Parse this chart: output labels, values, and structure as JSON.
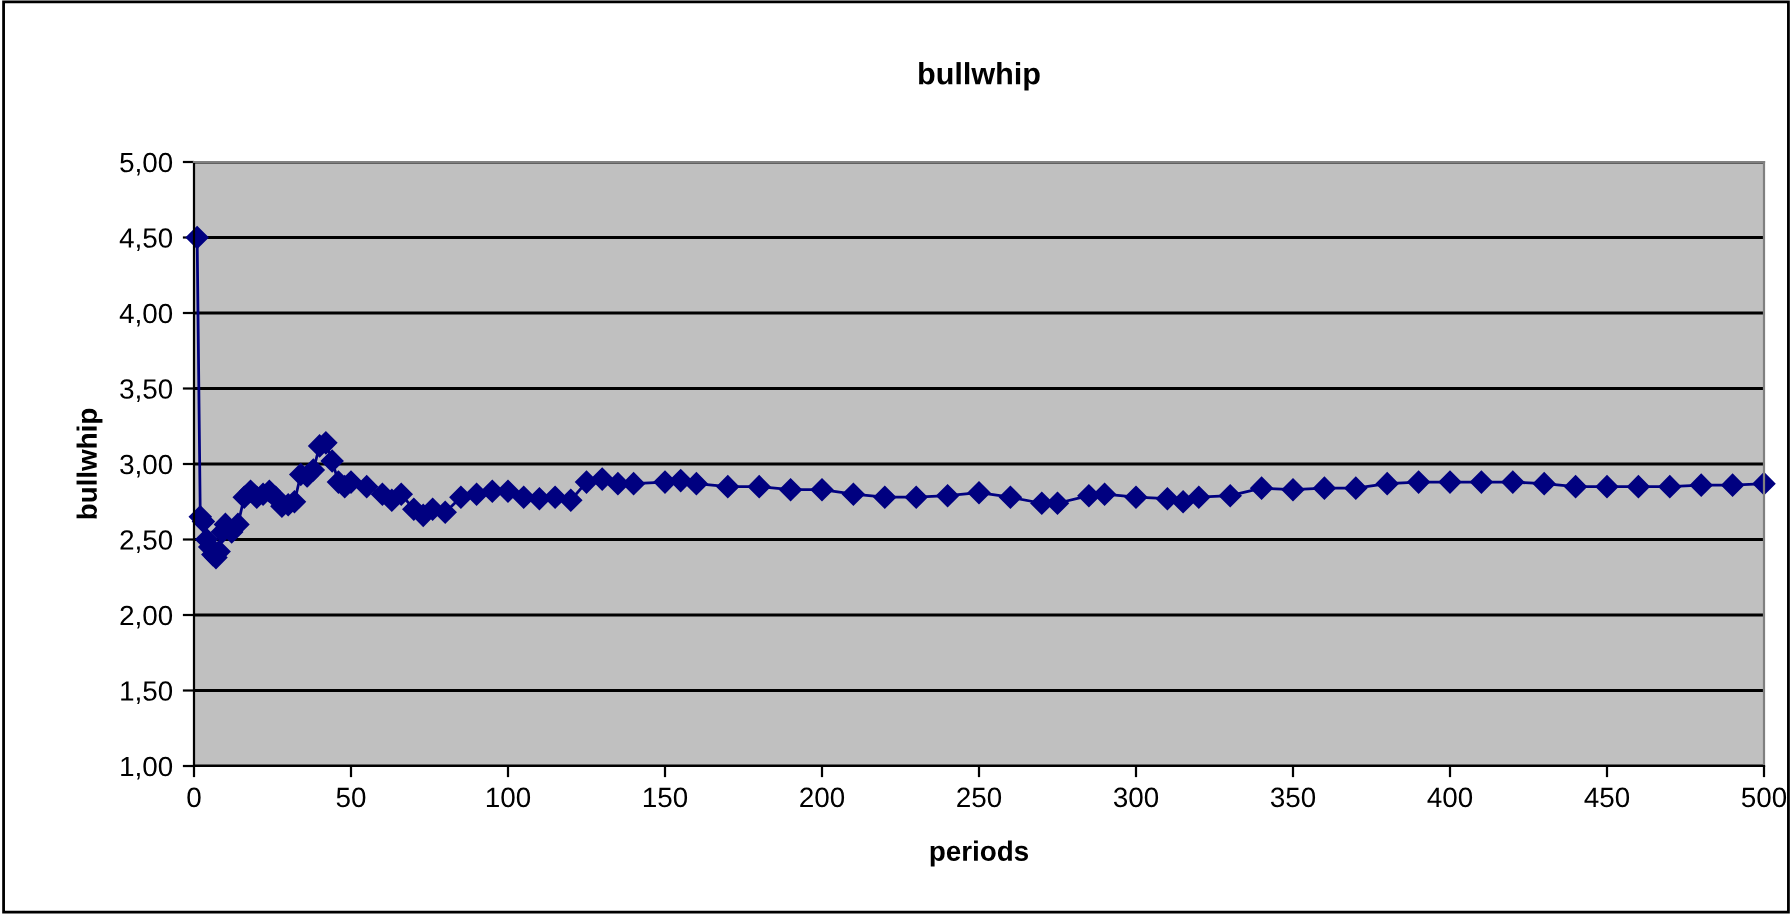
{
  "chart_data": {
    "type": "line",
    "title": "bullwhip",
    "xlabel": "periods",
    "ylabel": "bullwhip",
    "marker": "diamond",
    "grid": "y",
    "xlim": [
      0,
      500
    ],
    "ylim": [
      1,
      5
    ],
    "xticks": [
      0,
      50,
      100,
      150,
      200,
      250,
      300,
      350,
      400,
      450,
      500
    ],
    "yticks": [
      {
        "value": 1,
        "label": "1,00"
      },
      {
        "value": 1.5,
        "label": "1,50"
      },
      {
        "value": 2,
        "label": "2,00"
      },
      {
        "value": 2.5,
        "label": "2,50"
      },
      {
        "value": 3,
        "label": "3,00"
      },
      {
        "value": 3.5,
        "label": "3,50"
      },
      {
        "value": 4,
        "label": "4,00"
      },
      {
        "value": 4.5,
        "label": "4,50"
      },
      {
        "value": 5,
        "label": "5,00"
      }
    ],
    "x": [
      1,
      2,
      3,
      4,
      5,
      6,
      7,
      8,
      9,
      10,
      12,
      14,
      16,
      18,
      20,
      22,
      24,
      26,
      28,
      30,
      32,
      34,
      36,
      38,
      40,
      42,
      44,
      46,
      48,
      50,
      55,
      60,
      63,
      66,
      70,
      73,
      76,
      80,
      85,
      90,
      95,
      100,
      105,
      110,
      115,
      120,
      125,
      130,
      135,
      140,
      150,
      155,
      160,
      170,
      180,
      190,
      200,
      210,
      220,
      230,
      240,
      250,
      260,
      270,
      275,
      285,
      290,
      300,
      310,
      315,
      320,
      330,
      340,
      350,
      360,
      370,
      380,
      390,
      400,
      410,
      420,
      430,
      440,
      450,
      460,
      470,
      480,
      490,
      500
    ],
    "series": [
      {
        "color": "#000080",
        "values": [
          4.5,
          2.65,
          2.62,
          2.5,
          2.45,
          2.4,
          2.38,
          2.42,
          2.55,
          2.6,
          2.55,
          2.6,
          2.78,
          2.82,
          2.78,
          2.8,
          2.82,
          2.78,
          2.72,
          2.73,
          2.75,
          2.93,
          2.92,
          2.96,
          3.12,
          3.14,
          3.02,
          2.88,
          2.85,
          2.88,
          2.85,
          2.8,
          2.76,
          2.8,
          2.7,
          2.66,
          2.7,
          2.68,
          2.78,
          2.8,
          2.82,
          2.82,
          2.78,
          2.77,
          2.78,
          2.76,
          2.88,
          2.9,
          2.87,
          2.87,
          2.88,
          2.89,
          2.87,
          2.85,
          2.85,
          2.83,
          2.83,
          2.8,
          2.78,
          2.78,
          2.79,
          2.81,
          2.78,
          2.74,
          2.74,
          2.79,
          2.8,
          2.78,
          2.77,
          2.75,
          2.78,
          2.79,
          2.84,
          2.83,
          2.84,
          2.84,
          2.87,
          2.88,
          2.88,
          2.88,
          2.88,
          2.87,
          2.85,
          2.85,
          2.85,
          2.85,
          2.86,
          2.86,
          2.87
        ]
      }
    ]
  }
}
